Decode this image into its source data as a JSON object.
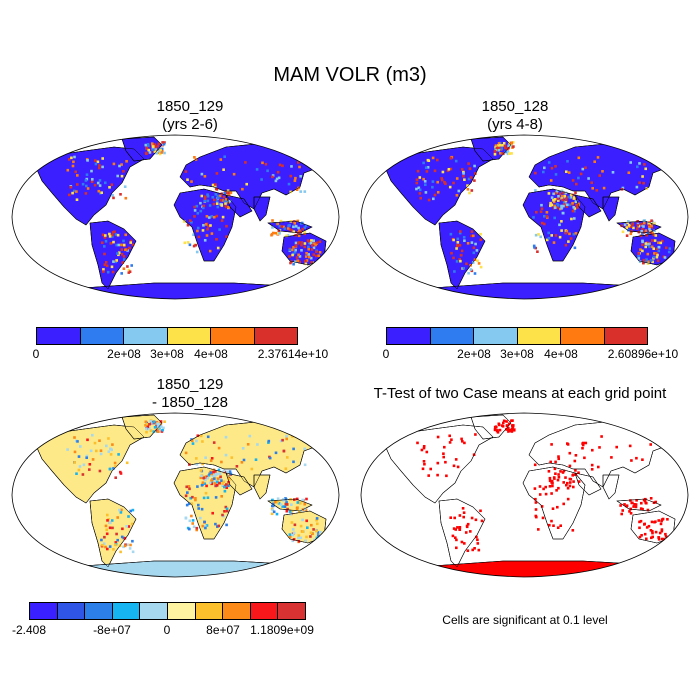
{
  "title": "MAM VOLR (m3)",
  "panels": [
    {
      "id": "p1",
      "title_line1": "1850_129",
      "title_line2": "(yrs 2-6)",
      "style": "field"
    },
    {
      "id": "p2",
      "title_line1": "1850_128",
      "title_line2": "(yrs 4-8)",
      "style": "field"
    },
    {
      "id": "p3",
      "title_line1": "1850_129",
      "title_line2": "- 1850_128",
      "style": "diff"
    },
    {
      "id": "p4",
      "title_line1": "T-Test of two Case means at each grid point",
      "title_line2": "",
      "style": "ttest"
    }
  ],
  "colorbars": [
    {
      "id": "cb1",
      "colors": [
        "#3b1fff",
        "#2e7cf0",
        "#86c9f0",
        "#fee24a",
        "#ff7a10",
        "#d9302c"
      ],
      "labels": [
        "0",
        "2e+08",
        "3e+08",
        "4e+08",
        "2.37614e+10"
      ]
    },
    {
      "id": "cb2",
      "colors": [
        "#3b1fff",
        "#2e7cf0",
        "#86c9f0",
        "#fee24a",
        "#ff7a10",
        "#d9302c"
      ],
      "labels": [
        "0",
        "2e+08",
        "3e+08",
        "4e+08",
        "2.60896e+10"
      ]
    },
    {
      "id": "cb3",
      "colors": [
        "#3a1fff",
        "#2f55e6",
        "#2c7ee8",
        "#16b4f0",
        "#a6d8f0",
        "#fdf3a0",
        "#fdc02d",
        "#fb8a18",
        "#f8171b",
        "#d83232"
      ],
      "labels": [
        "-2.408",
        "-8e+07",
        "0",
        "8e+07",
        "1.1809e+09"
      ]
    }
  ],
  "note": "Cells are significant at 0.1 level",
  "colors": {
    "ocean": "#ffffff",
    "field_land": "#3b1fff",
    "diff_land": "#fde987",
    "ttest_sig": "#ff0000",
    "antarctica_diff": "#a6d8f0"
  }
}
